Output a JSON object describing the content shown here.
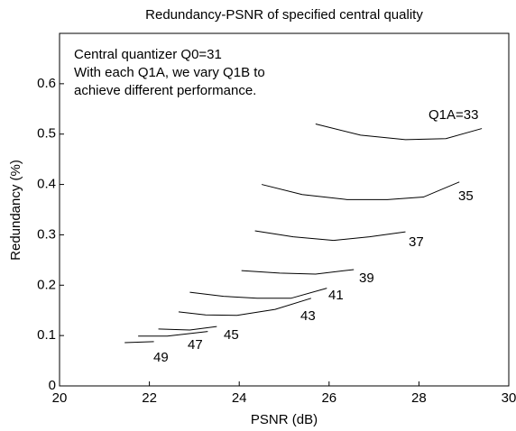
{
  "chart_data": {
    "type": "line",
    "title": "Redundancy-PSNR of specified central quality",
    "x_label": "PSNR (dB)",
    "y_label": "Redundancy (%)",
    "annotation": [
      "Central quantizer Q0=31",
      "With each Q1A, we vary Q1B to",
      "achieve different performance."
    ],
    "xlim": [
      20,
      30
    ],
    "xticks": [
      20,
      22,
      24,
      26,
      28,
      30
    ],
    "ylim": [
      0,
      0.7
    ],
    "yticks": [
      0,
      0.1,
      0.2,
      0.3,
      0.4,
      0.5,
      0.6
    ],
    "series": [
      {
        "name": "Q1A=33",
        "color": "#000000",
        "x": [
          25.7,
          26.7,
          27.7,
          28.6,
          29.4
        ],
        "values": [
          0.52,
          0.498,
          0.489,
          0.491,
          0.511
        ]
      },
      {
        "name": "35",
        "color": "#000000",
        "x": [
          24.5,
          25.4,
          26.4,
          27.3,
          28.1,
          28.9
        ],
        "values": [
          0.4,
          0.38,
          0.37,
          0.37,
          0.375,
          0.405
        ]
      },
      {
        "name": "37",
        "color": "#000000",
        "x": [
          24.35,
          25.2,
          26.1,
          26.9,
          27.7
        ],
        "values": [
          0.308,
          0.296,
          0.289,
          0.296,
          0.306
        ]
      },
      {
        "name": "39",
        "color": "#000000",
        "x": [
          24.05,
          24.9,
          25.7,
          26.55
        ],
        "values": [
          0.229,
          0.224,
          0.222,
          0.231
        ]
      },
      {
        "name": "41",
        "color": "#000000",
        "x": [
          22.9,
          23.65,
          24.4,
          25.15,
          25.95
        ],
        "values": [
          0.186,
          0.178,
          0.174,
          0.174,
          0.194
        ]
      },
      {
        "name": "43",
        "color": "#000000",
        "x": [
          22.65,
          23.25,
          23.95,
          24.8,
          25.6
        ],
        "values": [
          0.147,
          0.141,
          0.14,
          0.152,
          0.174
        ]
      },
      {
        "name": "45",
        "color": "#000000",
        "x": [
          22.2,
          22.9,
          23.5
        ],
        "values": [
          0.113,
          0.111,
          0.118
        ]
      },
      {
        "name": "47",
        "color": "#000000",
        "x": [
          21.75,
          22.4,
          23.3
        ],
        "values": [
          0.099,
          0.099,
          0.108
        ]
      },
      {
        "name": "49",
        "color": "#000000",
        "x": [
          21.45,
          22.1
        ],
        "values": [
          0.086,
          0.088
        ]
      }
    ]
  }
}
